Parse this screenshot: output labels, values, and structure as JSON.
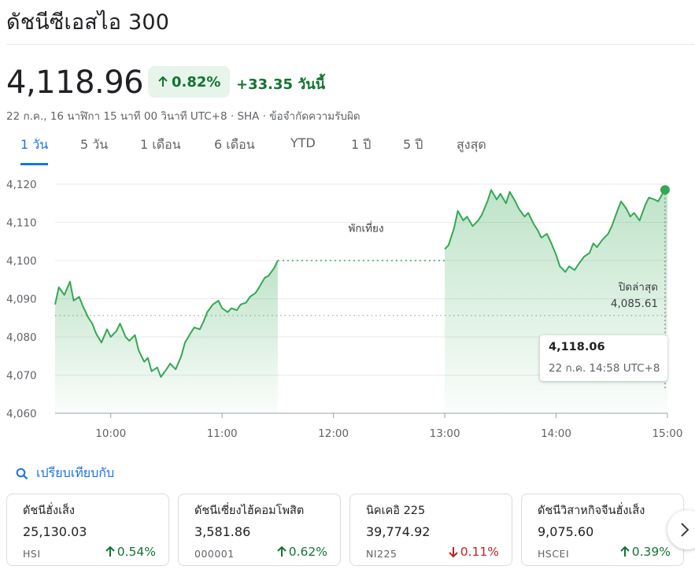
{
  "header": {
    "title": "ดัชนีซีเอสไอ 300",
    "price": "4,118.96",
    "change_pct": "0.82%",
    "change_abs": "+33.35 วันนี้",
    "meta": "22 ก.ค., 16 นาฬิกา 15 นาที 00 วินาที UTC+8 · SHA · ข้อจำกัดความรับผิด"
  },
  "tabs": [
    {
      "label": "1 วัน",
      "active": true
    },
    {
      "label": "5 วัน",
      "active": false
    },
    {
      "label": "1 เดือน",
      "active": false
    },
    {
      "label": "6 เดือน",
      "active": false
    },
    {
      "label": "YTD",
      "active": false
    },
    {
      "label": "1 ปี",
      "active": false
    },
    {
      "label": "5 ปี",
      "active": false
    },
    {
      "label": "สูงสุด",
      "active": false
    }
  ],
  "tooltip": {
    "value": "4,118.06",
    "time": "22 ก.ค. 14:58 UTC+8"
  },
  "compare_label": "เปรียบเทียบกับ",
  "colors": {
    "up": "#137333",
    "down": "#c5221f",
    "line": "#34a853",
    "accent": "#1a73e8"
  },
  "chart_data": {
    "type": "line",
    "title": "",
    "xlabel": "",
    "ylabel": "",
    "ylim": [
      4060,
      4120
    ],
    "y_ticks": [
      "4,120",
      "4,110",
      "4,100",
      "4,090",
      "4,080",
      "4,070",
      "4,060"
    ],
    "x_ticks": [
      "10:00",
      "11:00",
      "12:00",
      "13:00",
      "14:00",
      "15:00"
    ],
    "x_range": [
      "09:30",
      "15:00"
    ],
    "previous_close": {
      "label": "ปิดล่าสุด",
      "value_text": "4,085.61",
      "value": 4085.61
    },
    "lunch_break": {
      "label": "พักเที่ยง",
      "from": "11:30",
      "to": "13:00"
    },
    "series": [
      {
        "points": [
          [
            "09:30",
            4088.5
          ],
          [
            "09:32",
            4093.0
          ],
          [
            "09:35",
            4091.0
          ],
          [
            "09:38",
            4094.5
          ],
          [
            "09:40",
            4089.5
          ],
          [
            "09:43",
            4090.5
          ],
          [
            "09:45",
            4088.0
          ],
          [
            "09:48",
            4085.0
          ],
          [
            "09:50",
            4083.5
          ],
          [
            "09:52",
            4081.0
          ],
          [
            "09:55",
            4078.5
          ],
          [
            "09:58",
            4082.0
          ],
          [
            "10:00",
            4080.0
          ],
          [
            "10:03",
            4081.5
          ],
          [
            "10:05",
            4083.5
          ],
          [
            "10:08",
            4080.0
          ],
          [
            "10:10",
            4079.0
          ],
          [
            "10:13",
            4080.5
          ],
          [
            "10:15",
            4076.5
          ],
          [
            "10:18",
            4073.5
          ],
          [
            "10:20",
            4074.5
          ],
          [
            "10:22",
            4071.0
          ],
          [
            "10:25",
            4072.0
          ],
          [
            "10:27",
            4069.5
          ],
          [
            "10:30",
            4071.5
          ],
          [
            "10:32",
            4073.0
          ],
          [
            "10:35",
            4071.5
          ],
          [
            "10:38",
            4075.0
          ],
          [
            "10:40",
            4078.5
          ],
          [
            "10:43",
            4081.0
          ],
          [
            "10:45",
            4082.5
          ],
          [
            "10:48",
            4082.0
          ],
          [
            "10:50",
            4084.0
          ],
          [
            "10:52",
            4086.5
          ],
          [
            "10:55",
            4088.5
          ],
          [
            "10:58",
            4089.5
          ],
          [
            "11:00",
            4087.5
          ],
          [
            "11:03",
            4086.5
          ],
          [
            "11:05",
            4087.5
          ],
          [
            "11:08",
            4087.0
          ],
          [
            "11:10",
            4088.5
          ],
          [
            "11:13",
            4089.0
          ],
          [
            "11:15",
            4090.5
          ],
          [
            "11:18",
            4091.5
          ],
          [
            "11:20",
            4093.0
          ],
          [
            "11:23",
            4095.5
          ],
          [
            "11:25",
            4096.0
          ],
          [
            "11:28",
            4098.0
          ],
          [
            "11:30",
            4100.0
          ],
          [
            "13:00",
            4103.0
          ],
          [
            "13:02",
            4104.0
          ],
          [
            "13:05",
            4108.5
          ],
          [
            "13:07",
            4113.0
          ],
          [
            "13:10",
            4110.5
          ],
          [
            "13:12",
            4111.5
          ],
          [
            "13:15",
            4109.0
          ],
          [
            "13:18",
            4110.5
          ],
          [
            "13:20",
            4112.0
          ],
          [
            "13:23",
            4115.5
          ],
          [
            "13:25",
            4118.5
          ],
          [
            "13:28",
            4116.0
          ],
          [
            "13:30",
            4117.5
          ],
          [
            "13:33",
            4115.0
          ],
          [
            "13:35",
            4118.0
          ],
          [
            "13:38",
            4115.5
          ],
          [
            "13:40",
            4113.5
          ],
          [
            "13:43",
            4111.5
          ],
          [
            "13:45",
            4112.5
          ],
          [
            "13:48",
            4109.5
          ],
          [
            "13:50",
            4108.0
          ],
          [
            "13:52",
            4106.0
          ],
          [
            "13:55",
            4107.0
          ],
          [
            "13:57",
            4105.0
          ],
          [
            "14:00",
            4101.5
          ],
          [
            "14:02",
            4098.5
          ],
          [
            "14:05",
            4097.0
          ],
          [
            "14:07",
            4098.5
          ],
          [
            "14:10",
            4097.5
          ],
          [
            "14:12",
            4099.0
          ],
          [
            "14:15",
            4101.0
          ],
          [
            "14:18",
            4102.0
          ],
          [
            "14:20",
            4104.5
          ],
          [
            "14:22",
            4103.5
          ],
          [
            "14:25",
            4105.5
          ],
          [
            "14:28",
            4107.0
          ],
          [
            "14:30",
            4109.0
          ],
          [
            "14:33",
            4113.0
          ],
          [
            "14:35",
            4115.5
          ],
          [
            "14:38",
            4113.5
          ],
          [
            "14:40",
            4111.5
          ],
          [
            "14:42",
            4112.5
          ],
          [
            "14:45",
            4110.5
          ],
          [
            "14:48",
            4114.5
          ],
          [
            "14:50",
            4116.5
          ],
          [
            "14:53",
            4116.0
          ],
          [
            "14:55",
            4115.5
          ],
          [
            "14:58",
            4118.06
          ],
          [
            "15:00",
            4118.5
          ]
        ]
      }
    ]
  },
  "related": [
    {
      "name": "ดัชนีฮั่งเส็ง",
      "price": "25,130.03",
      "symbol": "HSI",
      "change": "0.54%",
      "direction": "up"
    },
    {
      "name": "ดัชนีเซี่ยงไฮ้คอมโพสิต",
      "price": "3,581.86",
      "symbol": "000001",
      "change": "0.62%",
      "direction": "up"
    },
    {
      "name": "นิคเคอิ 225",
      "price": "39,774.92",
      "symbol": "NI225",
      "change": "0.11%",
      "direction": "down"
    },
    {
      "name": "ดัชนีวิสาหกิจจีนฮั่งเส็ง",
      "price": "9,075.60",
      "symbol": "HSCEI",
      "change": "0.39%",
      "direction": "up"
    }
  ]
}
